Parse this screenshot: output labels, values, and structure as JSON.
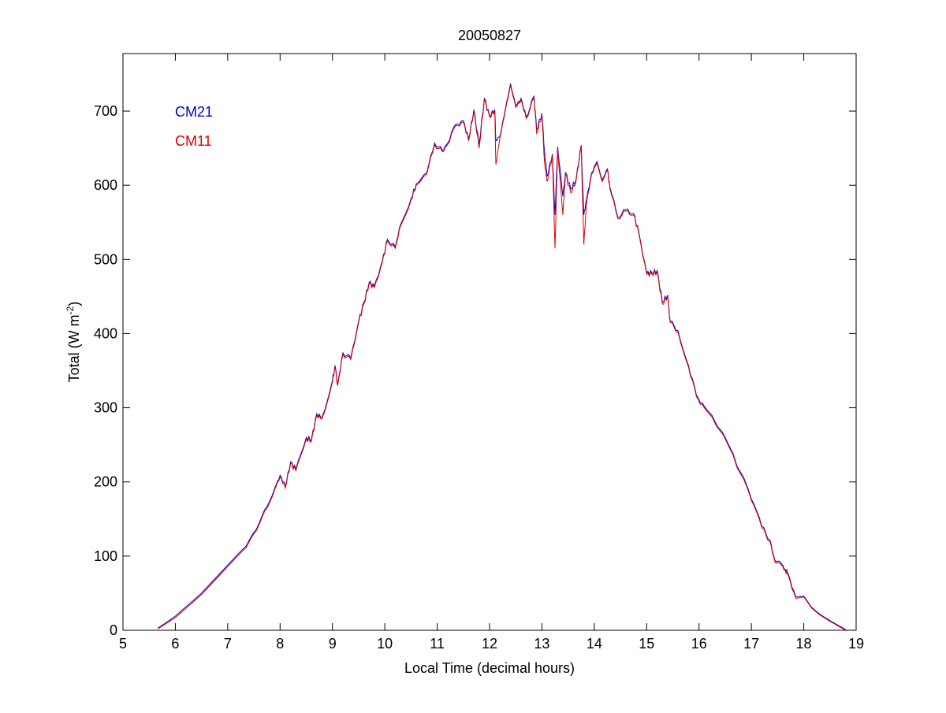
{
  "chart_data": {
    "type": "line",
    "title": "20050827",
    "xlabel": "Local Time (decimal hours)",
    "ylabel_main": "Total (W m",
    "ylabel_sup": "-2",
    "ylabel_close": ")",
    "xlim": [
      5,
      19
    ],
    "ylim": [
      0,
      775
    ],
    "xticks": [
      "5",
      "6",
      "7",
      "8",
      "9",
      "10",
      "11",
      "12",
      "13",
      "14",
      "15",
      "16",
      "17",
      "18",
      "19"
    ],
    "yticks": [
      "0",
      "100",
      "200",
      "300",
      "400",
      "500",
      "600",
      "700"
    ],
    "grid": false,
    "legend_placement": "top-left",
    "x": [
      5.67,
      6.0,
      6.5,
      7.0,
      7.3,
      7.5,
      7.7,
      7.9,
      8.0,
      8.1,
      8.2,
      8.3,
      8.5,
      8.6,
      8.7,
      8.8,
      9.0,
      9.05,
      9.1,
      9.2,
      9.35,
      9.5,
      9.6,
      9.7,
      9.8,
      9.95,
      10.05,
      10.2,
      10.3,
      10.5,
      10.6,
      10.8,
      10.95,
      11.1,
      11.2,
      11.35,
      11.5,
      11.6,
      11.7,
      11.8,
      11.9,
      12.0,
      12.1,
      12.12,
      12.2,
      12.3,
      12.4,
      12.5,
      12.6,
      12.7,
      12.85,
      12.9,
      13.0,
      13.05,
      13.1,
      13.2,
      13.25,
      13.3,
      13.4,
      13.45,
      13.55,
      13.65,
      13.75,
      13.8,
      13.85,
      13.95,
      14.05,
      14.15,
      14.25,
      14.3,
      14.45,
      14.6,
      14.75,
      14.85,
      15.0,
      15.1,
      15.2,
      15.3,
      15.4,
      15.45,
      15.6,
      15.8,
      15.95,
      16.1,
      16.3,
      16.5,
      16.8,
      17.0,
      17.2,
      17.35,
      17.45,
      17.55,
      17.65,
      17.7,
      17.85,
      18.0,
      18.15,
      18.3,
      18.5,
      18.8
    ],
    "series": [
      {
        "name": "CM21",
        "color": "#0000cc",
        "values": [
          3,
          19,
          50,
          88,
          110,
          132,
          162,
          192,
          209,
          194,
          227,
          217,
          260,
          257,
          292,
          287,
          337,
          357,
          332,
          374,
          367,
          417,
          442,
          469,
          464,
          497,
          527,
          517,
          547,
          582,
          602,
          617,
          657,
          647,
          657,
          682,
          687,
          662,
          702,
          655,
          717,
          694,
          702,
          660,
          667,
          702,
          737,
          707,
          717,
          692,
          720,
          675,
          697,
          645,
          612,
          642,
          560,
          652,
          585,
          617,
          595,
          607,
          654,
          560,
          580,
          617,
          632,
          607,
          622,
          597,
          557,
          567,
          562,
          537,
          482,
          482,
          485,
          443,
          452,
          417,
          404,
          357,
          317,
          302,
          282,
          260,
          212,
          177,
          140,
          122,
          94,
          92,
          82,
          77,
          45,
          46,
          31,
          22,
          13,
          1
        ]
      },
      {
        "name": "CM11",
        "color": "#dd0000",
        "values": [
          2,
          17,
          48,
          86,
          108,
          130,
          160,
          190,
          207,
          192,
          225,
          215,
          258,
          255,
          290,
          285,
          335,
          355,
          330,
          372,
          365,
          415,
          440,
          467,
          462,
          495,
          525,
          515,
          545,
          580,
          600,
          615,
          655,
          645,
          655,
          680,
          685,
          660,
          700,
          650,
          715,
          692,
          700,
          628,
          665,
          700,
          735,
          705,
          715,
          690,
          718,
          670,
          695,
          630,
          605,
          640,
          515,
          650,
          560,
          615,
          590,
          605,
          652,
          520,
          575,
          615,
          630,
          605,
          620,
          595,
          555,
          565,
          560,
          535,
          480,
          480,
          483,
          440,
          450,
          415,
          402,
          355,
          315,
          300,
          280,
          258,
          210,
          175,
          138,
          120,
          92,
          90,
          80,
          75,
          43,
          45,
          30,
          21,
          12,
          0
        ]
      }
    ]
  }
}
